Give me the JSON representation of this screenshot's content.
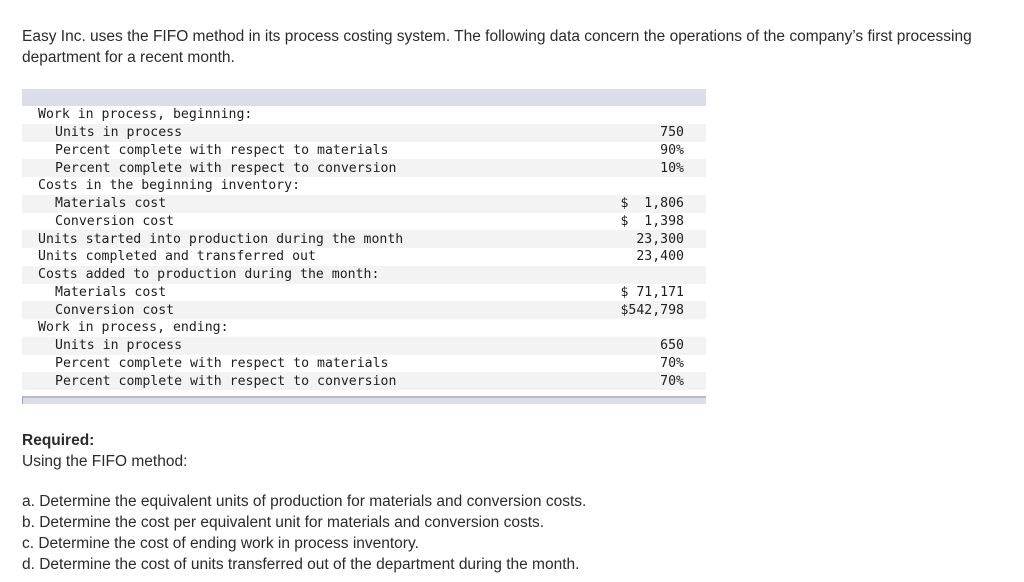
{
  "intro": "Easy Inc. uses the FIFO method in its process costing system. The following data concern the operations of the company’s first processing department for a recent month.",
  "table": {
    "rows": [
      {
        "label": "Work in process, beginning:",
        "value": "",
        "indent": false
      },
      {
        "label": "Units in process",
        "value": "750",
        "indent": true
      },
      {
        "label": "Percent complete with respect to materials",
        "value": "90%",
        "indent": true
      },
      {
        "label": "Percent complete with respect to conversion",
        "value": "10%",
        "indent": true
      },
      {
        "label": "Costs in the beginning inventory:",
        "value": "",
        "indent": false
      },
      {
        "label": "Materials cost",
        "value": "$  1,806",
        "indent": true
      },
      {
        "label": "Conversion cost",
        "value": "$  1,398",
        "indent": true
      },
      {
        "label": "Units started into production during the month",
        "value": "23,300",
        "indent": false
      },
      {
        "label": "Units completed and transferred out",
        "value": "23,400",
        "indent": false
      },
      {
        "label": "Costs added to production during the month:",
        "value": "",
        "indent": false
      },
      {
        "label": "Materials cost",
        "value": "$ 71,171",
        "indent": true
      },
      {
        "label": "Conversion cost",
        "value": "$542,798",
        "indent": true
      },
      {
        "label": "Work in process, ending:",
        "value": "",
        "indent": false
      },
      {
        "label": "Units in process",
        "value": "650",
        "indent": true
      },
      {
        "label": "Percent complete with respect to materials",
        "value": "70%",
        "indent": true
      },
      {
        "label": "Percent complete with respect to conversion",
        "value": "70%",
        "indent": true
      }
    ]
  },
  "required": {
    "title": "Required:",
    "subtitle": "Using the FIFO method:"
  },
  "tasks": [
    "a. Determine the equivalent units of production for materials and conversion costs.",
    "b. Determine the cost per equivalent unit for materials and conversion costs.",
    "c. Determine the cost of ending work in process inventory.",
    "d. Determine the cost of units transferred out of the department during the month."
  ]
}
